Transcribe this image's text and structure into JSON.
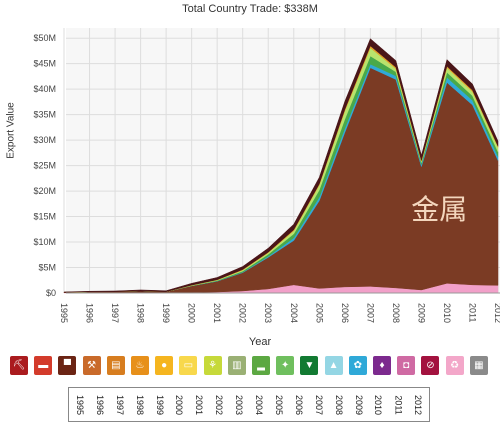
{
  "title": "Total Country Trade: $338M",
  "chart_data": {
    "type": "area",
    "stacked": true,
    "title": "Total Country Trade: $338M",
    "xlabel": "Year",
    "ylabel": "Export Value",
    "xlim": [
      1995,
      2012
    ],
    "ylim": [
      0,
      52
    ],
    "grid": true,
    "x": [
      1995,
      1996,
      1997,
      1998,
      1999,
      2000,
      2001,
      2002,
      2003,
      2004,
      2005,
      2006,
      2007,
      2008,
      2009,
      2010,
      2011,
      2012
    ],
    "x_ticks": [
      "1995",
      "1996",
      "1997",
      "1998",
      "1999",
      "2000",
      "2001",
      "2002",
      "2003",
      "2004",
      "2005",
      "2006",
      "2007",
      "2008",
      "2009",
      "2010",
      "2011",
      "2012"
    ],
    "y_ticks": [
      {
        "v": 0,
        "label": "$0"
      },
      {
        "v": 5,
        "label": "$5M"
      },
      {
        "v": 10,
        "label": "$10M"
      },
      {
        "v": 15,
        "label": "$15M"
      },
      {
        "v": 20,
        "label": "$20M"
      },
      {
        "v": 25,
        "label": "$25M"
      },
      {
        "v": 30,
        "label": "$30M"
      },
      {
        "v": 35,
        "label": "$35M"
      },
      {
        "v": 40,
        "label": "$40M"
      },
      {
        "v": 45,
        "label": "$45M"
      },
      {
        "v": 50,
        "label": "$50M"
      }
    ],
    "annotation": {
      "text": "金属",
      "x": 2009.7,
      "y": 14.5
    },
    "series": [
      {
        "color": "#f2a0c9",
        "values": [
          0.05,
          0.05,
          0.05,
          0.05,
          0.05,
          0.1,
          0.2,
          0.4,
          0.8,
          1.6,
          0.9,
          1.2,
          1.3,
          1.0,
          0.6,
          1.9,
          1.6,
          1.5
        ]
      },
      {
        "color": "#7b3b24",
        "values": [
          0.1,
          0.2,
          0.2,
          0.3,
          0.2,
          1.3,
          2.1,
          3.6,
          6.2,
          8.7,
          17.2,
          30.3,
          42.9,
          40.9,
          24.2,
          39.4,
          35.3,
          24.5
        ]
      },
      {
        "color": "#2fa9d8",
        "values": [
          0,
          0,
          0,
          0,
          0,
          0,
          0.05,
          0.1,
          0.2,
          0.5,
          0.7,
          0.8,
          0.7,
          0.7,
          0.4,
          1.0,
          0.9,
          0.8
        ]
      },
      {
        "color": "#49a94a",
        "values": [
          0,
          0,
          0,
          0,
          0,
          0.05,
          0.1,
          0.2,
          0.4,
          0.8,
          1.4,
          1.8,
          1.6,
          0.8,
          0.4,
          1.0,
          0.9,
          0.9
        ]
      },
      {
        "color": "#b9e36c",
        "values": [
          0,
          0,
          0,
          0,
          0,
          0.05,
          0.1,
          0.2,
          0.3,
          0.6,
          1.0,
          1.6,
          1.6,
          0.6,
          0.2,
          0.9,
          0.8,
          0.9
        ]
      },
      {
        "color": "#e3a12a",
        "values": [
          0,
          0,
          0,
          0,
          0,
          0.05,
          0.05,
          0.1,
          0.1,
          0.2,
          0.2,
          0.3,
          0.4,
          0.3,
          0.2,
          0.3,
          0.3,
          0.2
        ]
      },
      {
        "color": "#4a1518",
        "values": [
          0.05,
          0.1,
          0.15,
          0.25,
          0.2,
          0.35,
          0.45,
          0.6,
          0.8,
          1.1,
          1.3,
          1.6,
          1.4,
          1.3,
          1.0,
          1.3,
          1.2,
          1.0
        ]
      }
    ]
  },
  "legend": [
    {
      "icon": "pickaxe-icon",
      "glyph": "⛏",
      "color": "#aa1b1e"
    },
    {
      "icon": "ruler-icon",
      "glyph": "▬",
      "color": "#d33b2b"
    },
    {
      "icon": "hide-icon",
      "glyph": "▀",
      "color": "#6b2414"
    },
    {
      "icon": "cart-icon",
      "glyph": "⚒",
      "color": "#c96a2a"
    },
    {
      "icon": "document-icon",
      "glyph": "▤",
      "color": "#d77d1f"
    },
    {
      "icon": "flame-icon",
      "glyph": "♨",
      "color": "#e7901a"
    },
    {
      "icon": "fruit-icon",
      "glyph": "●",
      "color": "#f5b51f"
    },
    {
      "icon": "cigar-icon",
      "glyph": "▭",
      "color": "#f8d84c"
    },
    {
      "icon": "wheat-icon",
      "glyph": "⚘",
      "color": "#c6d93a"
    },
    {
      "icon": "building-icon",
      "glyph": "▥",
      "color": "#9ab074"
    },
    {
      "icon": "shoe-icon",
      "glyph": "▂",
      "color": "#5ca842"
    },
    {
      "icon": "star-figure-icon",
      "glyph": "✦",
      "color": "#6fbf5e"
    },
    {
      "icon": "shirt-icon",
      "glyph": "▼",
      "color": "#127a32"
    },
    {
      "icon": "dress-icon",
      "glyph": "▲",
      "color": "#94d6e4"
    },
    {
      "icon": "molecule-icon",
      "glyph": "✿",
      "color": "#2fa9d8"
    },
    {
      "icon": "diamond-icon",
      "glyph": "♦",
      "color": "#7c2a8e"
    },
    {
      "icon": "bag-icon",
      "glyph": "◘",
      "color": "#cf6aa3"
    },
    {
      "icon": "prohibited-icon",
      "glyph": "⊘",
      "color": "#a3123f"
    },
    {
      "icon": "recycle-icon",
      "glyph": "♻",
      "color": "#f3a7c9"
    },
    {
      "icon": "box-icon",
      "glyph": "▦",
      "color": "#8a8a8a"
    }
  ],
  "timeline": [
    "1995",
    "1996",
    "1997",
    "1998",
    "1999",
    "2000",
    "2001",
    "2002",
    "2003",
    "2004",
    "2005",
    "2006",
    "2007",
    "2008",
    "2009",
    "2010",
    "2011",
    "2012"
  ]
}
